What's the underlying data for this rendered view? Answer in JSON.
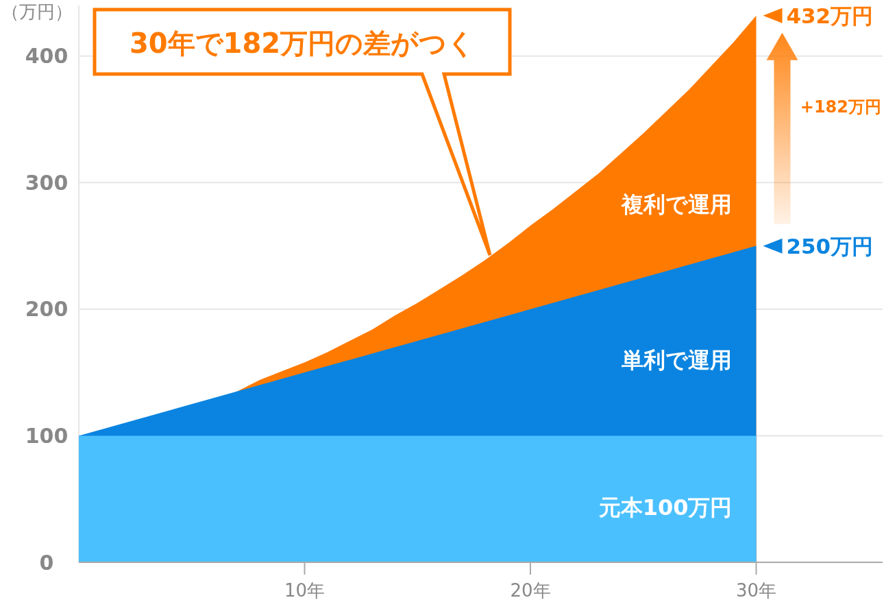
{
  "chart_data": {
    "type": "area",
    "ylabel": "（万円）",
    "xlim": [
      0,
      35.6
    ],
    "xticks": [
      {
        "value": 10,
        "label": "10年"
      },
      {
        "value": 20,
        "label": "20年"
      },
      {
        "value": 30,
        "label": "30年"
      }
    ],
    "ylim": [
      0,
      440
    ],
    "yticks": [
      0,
      100,
      200,
      300,
      400
    ],
    "grid": "y",
    "legend": false,
    "series": [
      {
        "name": "元本100万円",
        "color": "#4bc0ff",
        "x": [
          0,
          30
        ],
        "values": [
          100,
          100
        ]
      },
      {
        "name": "単利で運用",
        "color": "#0a84e0",
        "x": [
          0,
          30
        ],
        "values": [
          100,
          250
        ],
        "value_labels": [
          null,
          "250万円"
        ]
      },
      {
        "name": "複利で運用",
        "color": "#ff7a00",
        "x": [
          7,
          8,
          9,
          10,
          11,
          12,
          13,
          14,
          15,
          16,
          17,
          18,
          19,
          20,
          21,
          22,
          23,
          24,
          25,
          26,
          27,
          28,
          29,
          30
        ],
        "values": [
          135,
          144,
          151,
          158,
          166,
          175,
          184,
          195,
          205,
          216,
          227,
          239,
          252,
          266,
          279,
          293,
          307,
          323,
          339,
          356,
          373,
          392,
          411,
          432
        ],
        "value_labels": [
          null,
          null,
          null,
          null,
          null,
          null,
          null,
          null,
          null,
          null,
          null,
          null,
          null,
          null,
          null,
          null,
          null,
          null,
          null,
          null,
          null,
          null,
          null,
          "432万円"
        ]
      }
    ],
    "annotations": [
      "30年で182万円の差がつく",
      "+182万円"
    ]
  }
}
